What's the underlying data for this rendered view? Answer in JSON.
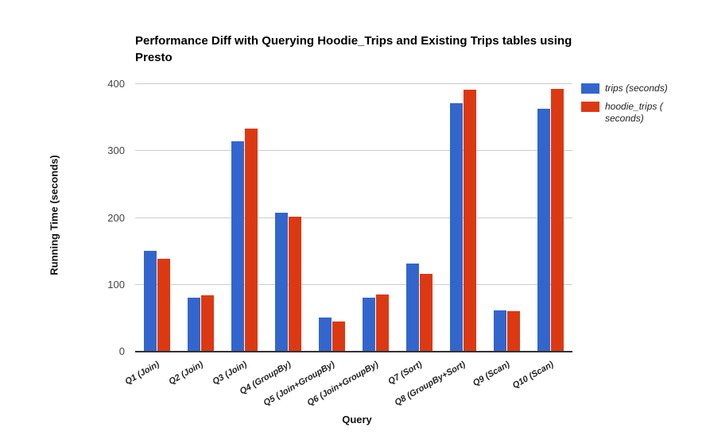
{
  "chart_data": {
    "type": "bar",
    "title": "Performance Diff with Querying Hoodie_Trips and Existing Trips tables using Presto",
    "xlabel": "Query",
    "ylabel": "Running Time (seconds)",
    "ylim": [
      0,
      400
    ],
    "yticks": [
      0,
      100,
      200,
      300,
      400
    ],
    "grid": true,
    "legend_position": "right",
    "grid_color": "#cccccc",
    "baseline_color": "#333333",
    "categories": [
      "Q1 (Join)",
      "Q2 (Join)",
      "Q3 (Join)",
      "Q4 (GroupBy)",
      "Q5 (Join+GroupBy)",
      "Q6 (Join+GroupBy)",
      "Q7 (Sort)",
      "Q8 (GroupBy+Sort)",
      "Q9 (Scan)",
      "Q10 (Scan)"
    ],
    "series": [
      {
        "name": "trips (seconds)",
        "color": "#3366CC",
        "values": [
          150,
          80,
          313,
          207,
          50,
          80,
          130,
          370,
          60,
          362
        ]
      },
      {
        "name": "hoodie_trips ( seconds)",
        "color": "#DC3912",
        "values": [
          138,
          83,
          332,
          201,
          44,
          84,
          115,
          390,
          59,
          392
        ]
      }
    ]
  }
}
